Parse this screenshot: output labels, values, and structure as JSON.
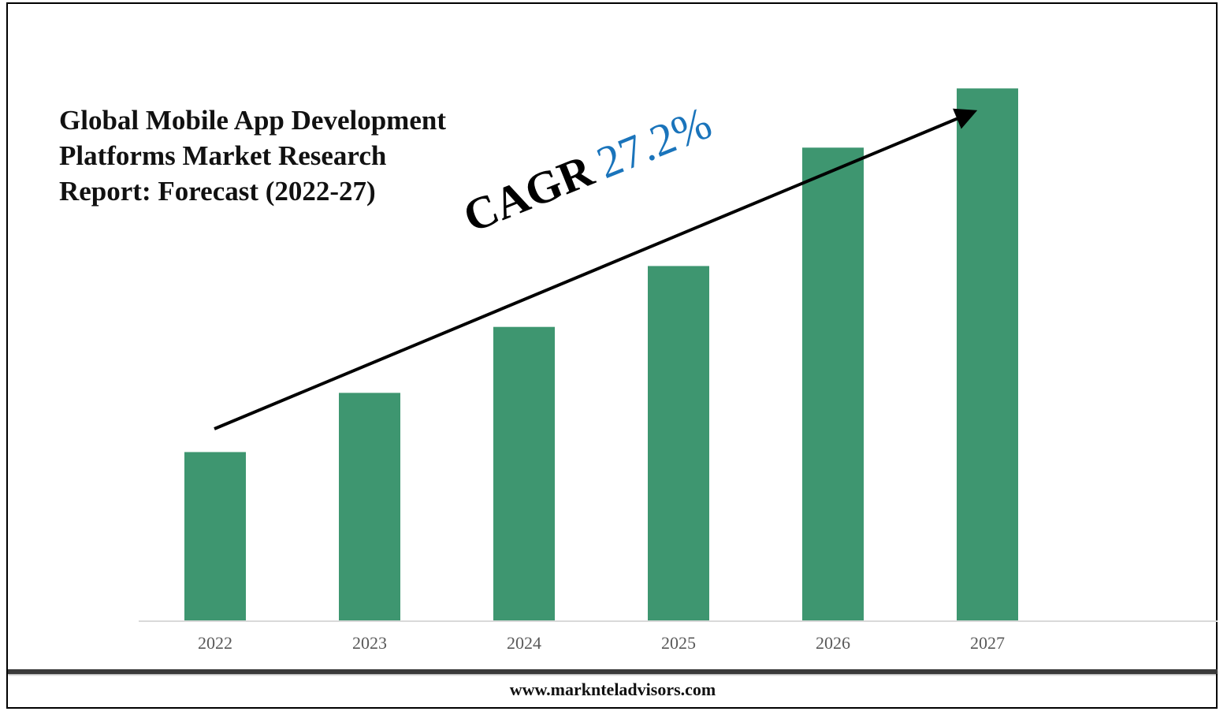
{
  "title_lines": [
    "Global Mobile App Development",
    "Platforms Market Research",
    "Report: Forecast (2022-27)"
  ],
  "cagr": {
    "label": "CAGR",
    "value": "27.2%"
  },
  "footer": {
    "url": "www.marknteladvisors.com"
  },
  "colors": {
    "bar": "#3e9670",
    "axis": "#d9d9d9",
    "tick_label": "#595959",
    "cagr_value": "#1a74bb",
    "arrow": "#000000"
  },
  "chart_data": {
    "type": "bar",
    "title": "Global Mobile App Development Platforms Market Research Report: Forecast (2022-27)",
    "categories": [
      "2022",
      "2023",
      "2024",
      "2025",
      "2026",
      "2027"
    ],
    "values": [
      1.0,
      1.35,
      1.74,
      2.1,
      2.8,
      3.15
    ],
    "ylim": [
      0,
      3.3
    ],
    "grid": false,
    "legend": "none",
    "annotations": [
      "CAGR 27.2%"
    ]
  }
}
